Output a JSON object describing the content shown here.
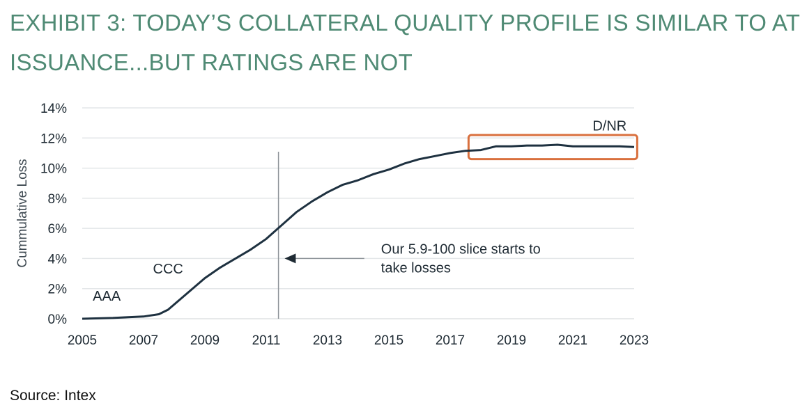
{
  "header": {
    "title_line1": "EXHIBIT 3: TODAY’S COLLATERAL QUALITY PROFILE IS SIMILAR TO AT",
    "title_line2": "ISSUANCE...BUT RATINGS ARE NOT"
  },
  "footer": {
    "source": "Source: Intex"
  },
  "colors": {
    "title": "#4f8a74",
    "line": "#1e3140",
    "highlight": "#d9703e",
    "grid": "#e3e6e8",
    "marker": "#8c9297"
  },
  "chart_data": {
    "type": "line",
    "title": "",
    "xlabel": "",
    "ylabel": "Cummulative Loss",
    "x_ticks": [
      "2005",
      "2007",
      "2009",
      "2011",
      "2013",
      "2015",
      "2017",
      "2019",
      "2021",
      "2023"
    ],
    "y_ticks": [
      "0%",
      "2%",
      "4%",
      "6%",
      "8%",
      "10%",
      "12%",
      "14%"
    ],
    "xlim": [
      2005,
      2023
    ],
    "ylim": [
      0,
      14
    ],
    "grid": "horizontal",
    "series": [
      {
        "x": [
          2005.0,
          2006.0,
          2006.5,
          2007.0,
          2007.5,
          2007.8,
          2008.2,
          2008.6,
          2009.0,
          2009.5,
          2010.0,
          2010.5,
          2011.0,
          2011.5,
          2012.0,
          2012.5,
          2013.0,
          2013.5,
          2014.0,
          2014.5,
          2015.0,
          2015.5,
          2016.0,
          2016.5,
          2017.0,
          2017.5,
          2018.0,
          2018.5,
          2019.0,
          2019.5,
          2020.0,
          2020.5,
          2021.0,
          2021.5,
          2022.0,
          2022.5,
          2023.0
        ],
        "y": [
          0.0,
          0.05,
          0.1,
          0.15,
          0.3,
          0.6,
          1.3,
          2.0,
          2.7,
          3.4,
          4.0,
          4.6,
          5.3,
          6.2,
          7.1,
          7.8,
          8.4,
          8.9,
          9.2,
          9.6,
          9.9,
          10.3,
          10.6,
          10.8,
          11.0,
          11.15,
          11.2,
          11.45,
          11.45,
          11.5,
          11.5,
          11.55,
          11.45,
          11.45,
          11.45,
          11.45,
          11.4
        ]
      }
    ],
    "marker_x": 2011.4,
    "annotations": [
      {
        "text": "AAA",
        "x": 2005.8,
        "y": 1.2
      },
      {
        "text": "CCC",
        "x": 2007.8,
        "y": 3.0
      },
      {
        "text": "D/NR",
        "x": 2022.2,
        "y": 12.5
      }
    ],
    "arrow_note": {
      "line1": "Our 5.9-100 slice starts to",
      "line2": "take losses",
      "arrow_y": 4.0,
      "arrow_from_x": 2014.2,
      "arrow_to_x": 2011.6
    },
    "highlight_box": {
      "x0": 2017.6,
      "x1": 2023.1,
      "y0": 10.6,
      "y1": 12.2
    }
  }
}
